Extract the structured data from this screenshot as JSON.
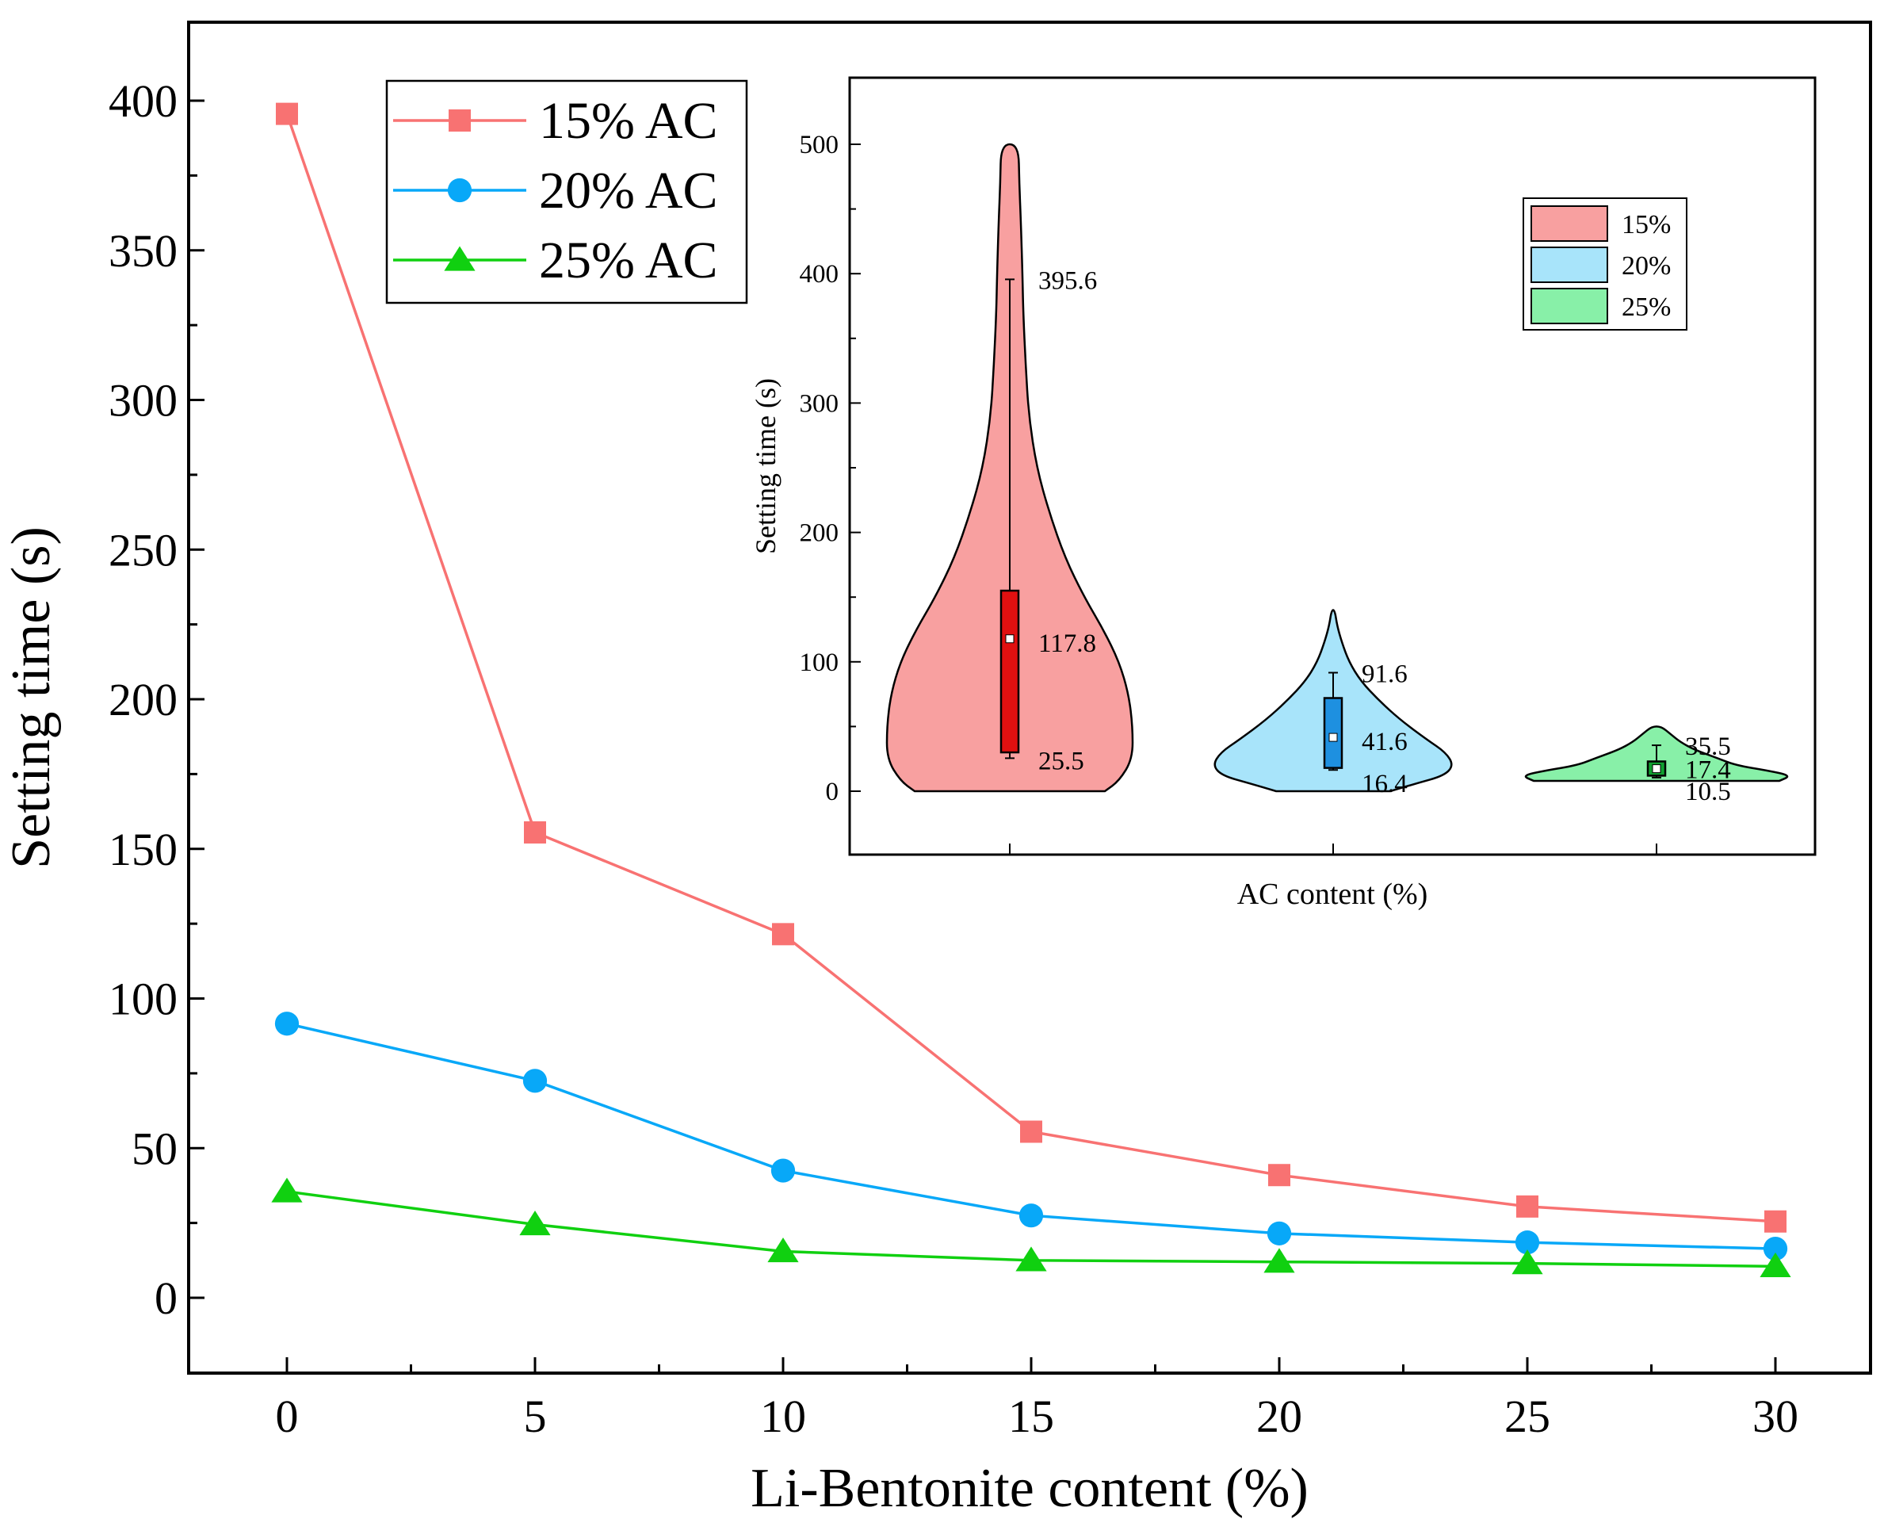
{
  "chart_data": [
    {
      "type": "line",
      "title": "",
      "xlabel": "Li-Bentonite content (%)",
      "ylabel": "Setting time (s)",
      "xlim": [
        -2,
        31.5
      ],
      "ylim": [
        -25,
        425
      ],
      "x": [
        0,
        5,
        10,
        15,
        20,
        25,
        30
      ],
      "xticks": [
        "0",
        "5",
        "10",
        "15",
        "20",
        "25",
        "30"
      ],
      "yticks": [
        "0",
        "50",
        "100",
        "150",
        "200",
        "250",
        "300",
        "350",
        "400"
      ],
      "legend_position": "top-left",
      "series": [
        {
          "name": "15% AC",
          "color": "#F87272",
          "marker": "square",
          "values": [
            395.6,
            155.5,
            121.5,
            55.5,
            41,
            30.5,
            25.5
          ]
        },
        {
          "name": "20% AC",
          "color": "#08A8F8",
          "marker": "circle",
          "values": [
            91.6,
            72.5,
            42.5,
            27.5,
            21.5,
            18.5,
            16.4
          ]
        },
        {
          "name": "25% AC",
          "color": "#10D010",
          "marker": "triangle",
          "values": [
            35.5,
            24.5,
            15.5,
            12.5,
            12,
            11.5,
            10.5
          ]
        }
      ]
    },
    {
      "type": "violin",
      "title": "",
      "xlabel": "AC content (%)",
      "ylabel": "Setting time (s)",
      "ylim": [
        -50,
        550
      ],
      "yticks": [
        "0",
        "100",
        "200",
        "300",
        "400",
        "500"
      ],
      "legend_position": "top-right",
      "groups": [
        {
          "name": "15%",
          "fill": "#F8A0A0",
          "box_color": "#E01010",
          "min": 25.5,
          "q1": 30,
          "median": 117.8,
          "q3": 155,
          "max": 395.6,
          "labels": {
            "max": "395.6",
            "median": "117.8",
            "min": "25.5"
          }
        },
        {
          "name": "20%",
          "fill": "#A8E4FA",
          "box_color": "#1E90E0",
          "min": 16.4,
          "q1": 18,
          "median": 41.6,
          "q3": 72,
          "max": 91.6,
          "labels": {
            "max": "91.6",
            "median": "41.6",
            "min": "16.4"
          }
        },
        {
          "name": "25%",
          "fill": "#88F0A8",
          "box_color": "#10A030",
          "min": 10.5,
          "q1": 12,
          "median": 17.4,
          "q3": 23,
          "max": 35.5,
          "labels": {
            "max": "35.5",
            "median": "17.4",
            "min": "10.5"
          }
        }
      ]
    }
  ]
}
